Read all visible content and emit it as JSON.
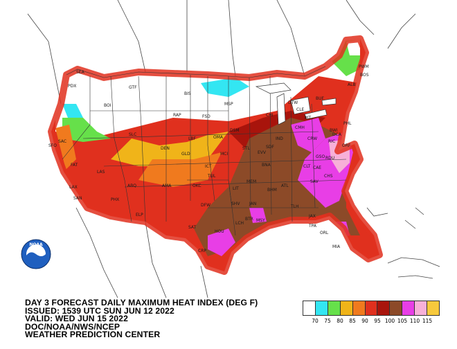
{
  "title_lines": [
    "DAY 3 FORECAST DAILY MAXIMUM HEAT INDEX (DEG F)",
    "ISSUED: 1539 UTC SUN JUN 12 2022",
    "VALID: WED JUN 15 2022",
    "DOC/NOAA/NWS/NCEP",
    "WEATHER PREDICTION CENTER"
  ],
  "logo_text": "NOAA",
  "legend": {
    "ticks": [
      "70",
      "75",
      "80",
      "85",
      "90",
      "95",
      "100",
      "105",
      "110",
      "115"
    ],
    "colors": [
      "#ffffff",
      "#33e6f2",
      "#66e04a",
      "#f0b419",
      "#f07a1e",
      "#e0301e",
      "#a8140c",
      "#8c4a28",
      "#e83ee6",
      "#f7b0d8",
      "#f7c93c"
    ]
  },
  "cities": [
    "SEA",
    "PDX",
    "GTF",
    "BIS",
    "MSP",
    "SFO",
    "SAC",
    "RAP",
    "FSD",
    "LAX",
    "SAN",
    "ABQ",
    "AMA",
    "DEN",
    "OKC",
    "DFW",
    "SAT",
    "HOU",
    "CRP",
    "ELP",
    "LBF",
    "GLD",
    "OMA",
    "DSM",
    "MCI",
    "ICT",
    "TUL",
    "LIT",
    "MEM",
    "BNA",
    "ATL",
    "BHM",
    "JAN",
    "MSY",
    "BTR",
    "TLH",
    "TPA",
    "ORL",
    "MIA",
    "JAX",
    "SAV",
    "CHS",
    "CLT",
    "RDU",
    "RIC",
    "DCA",
    "PHL",
    "BOS",
    "ALB",
    "PWM",
    "BUF",
    "PIT",
    "CLE",
    "DTW",
    "CHI",
    "STL",
    "EVV",
    "SDF",
    "IND",
    "CMH",
    "CRW",
    "BWI",
    "SHV",
    "LCH",
    "CAE",
    "GSO",
    "ORF",
    "FAT",
    "LAS",
    "PHX",
    "SLC",
    "BOI"
  ]
}
